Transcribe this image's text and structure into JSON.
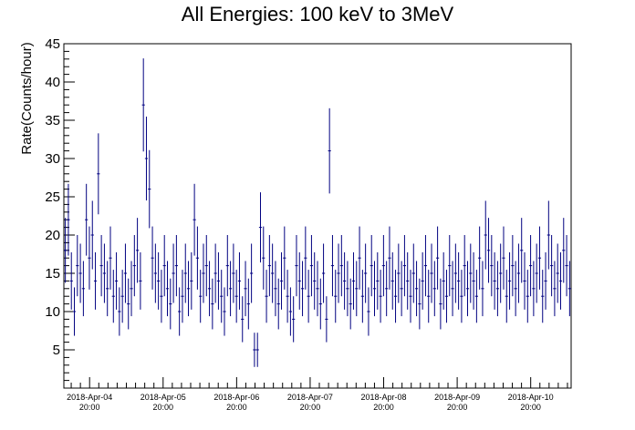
{
  "chart_data": {
    "type": "scatter",
    "title": "All Energies:  100 keV to 3MeV",
    "ylabel": "Rate(Counts/hour)",
    "xlabel": "",
    "ylim": [
      0,
      45
    ],
    "yticks": [
      5,
      10,
      15,
      20,
      25,
      30,
      35,
      40,
      45
    ],
    "xlim_days": [
      -0.35,
      6.55
    ],
    "xticks": [
      {
        "date": "2018-Apr-04",
        "time": "20:00",
        "day": 0
      },
      {
        "date": "2018-Apr-05",
        "time": "20:00",
        "day": 1
      },
      {
        "date": "2018-Apr-06",
        "time": "20:00",
        "day": 2
      },
      {
        "date": "2018-Apr-07",
        "time": "20:00",
        "day": 3
      },
      {
        "date": "2018-Apr-08",
        "time": "20:00",
        "day": 4
      },
      {
        "date": "2018-Apr-09",
        "time": "20:00",
        "day": 5
      },
      {
        "date": "2018-Apr-10",
        "time": "20:00",
        "day": 6
      }
    ],
    "series_color": "#000080",
    "error_bars": "sqrt(N) per hourly bin",
    "hours_per_point": 1,
    "values": [
      18,
      22,
      14,
      10,
      16,
      15,
      13,
      22,
      17,
      20,
      14,
      28,
      16,
      15,
      13,
      17,
      12,
      14,
      10,
      12,
      15,
      11,
      13,
      16,
      18,
      14,
      37,
      30,
      26,
      17,
      15,
      14,
      12,
      16,
      13,
      11,
      15,
      16,
      10,
      12,
      15,
      13,
      14,
      22,
      17,
      12,
      15,
      16,
      13,
      11,
      15,
      14,
      12,
      10,
      16,
      13,
      15,
      12,
      14,
      9,
      13,
      11,
      15,
      5,
      5,
      21,
      17,
      12,
      16,
      15,
      13,
      11,
      14,
      17,
      12,
      10,
      9,
      16,
      14,
      13,
      17,
      12,
      16,
      14,
      13,
      11,
      15,
      9,
      31,
      16,
      12,
      15,
      16,
      14,
      13,
      11,
      14,
      13,
      17,
      12,
      15,
      10,
      16,
      13,
      14,
      12,
      16,
      13,
      17,
      14,
      12,
      15,
      13,
      16,
      14,
      12,
      15,
      13,
      11,
      14,
      16,
      12,
      15,
      13,
      17,
      11,
      14,
      12,
      16,
      13,
      15,
      14,
      12,
      16,
      13,
      15,
      14,
      12,
      17,
      13,
      20,
      18,
      16,
      14,
      13,
      15,
      17,
      12,
      14,
      16,
      13,
      15,
      18,
      14,
      12,
      16,
      13,
      15,
      17,
      12,
      14,
      20,
      16,
      13,
      15,
      14,
      18,
      16,
      13
    ]
  }
}
